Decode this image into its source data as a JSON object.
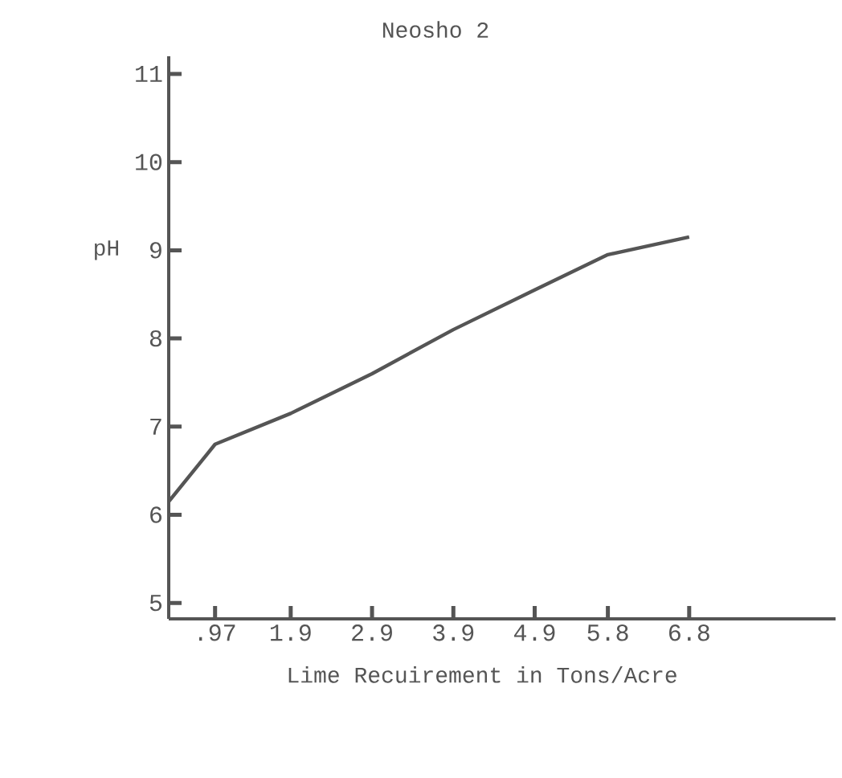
{
  "chart_data": {
    "type": "line",
    "title": "Neosho 2",
    "xlabel": "Lime Recuirement in Tons/Acre",
    "ylabel": "pH",
    "x": [
      0.4,
      0.97,
      1.9,
      2.9,
      3.9,
      4.9,
      5.8,
      6.8
    ],
    "series": [
      {
        "color": "#555555",
        "values": [
          6.15,
          6.8,
          7.15,
          7.6,
          8.1,
          8.55,
          8.95,
          9.15
        ]
      }
    ],
    "xlim": [
      0.4,
      8.6
    ],
    "ylim": [
      4.82,
      11.2
    ],
    "xticks": [
      {
        "value": 0.97,
        "label": ".97"
      },
      1.9,
      2.9,
      3.9,
      4.9,
      5.8,
      6.8
    ],
    "yticks": [
      5,
      6,
      7,
      8,
      9,
      10,
      11
    ],
    "grid": false,
    "marker": "none",
    "line_style": "solid"
  }
}
